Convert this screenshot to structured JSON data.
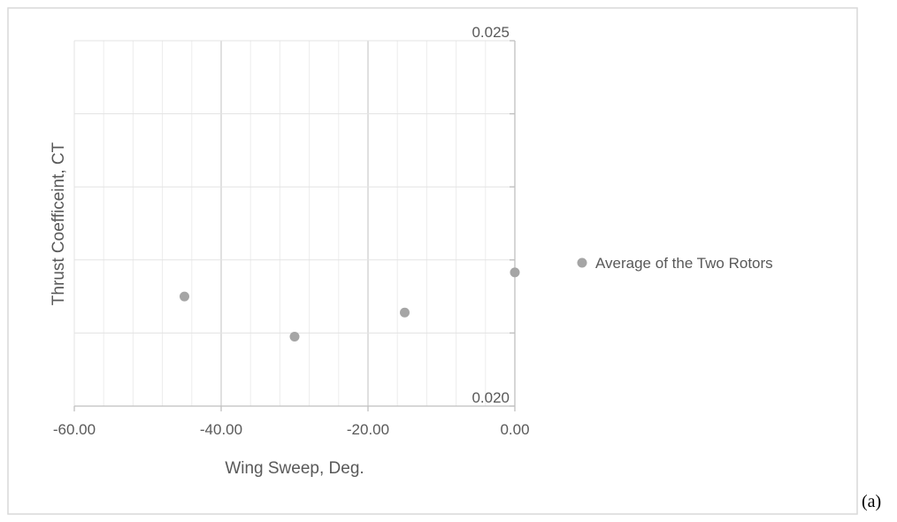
{
  "panel_label": "(a)",
  "chart_data": {
    "type": "scatter",
    "title": "",
    "xlabel": "Wing Sweep, Deg.",
    "ylabel": "Thrust Coefficeint, CT",
    "xlim": [
      -60,
      0
    ],
    "ylim": [
      0.02,
      0.025
    ],
    "x_ticks": [
      -60,
      -40,
      -20,
      0
    ],
    "x_tick_labels": [
      "-60.00",
      "-40.00",
      "-20.00",
      "0.00"
    ],
    "y_tick_labels_shown": [
      {
        "value": 0.025,
        "label": "0.025"
      },
      {
        "value": 0.02,
        "label": "0.020"
      }
    ],
    "major_grid_x_step": 20,
    "minor_grid_x_step": 4,
    "grid_y_step": 0.001,
    "grid": true,
    "legend_position": "right",
    "series": [
      {
        "name": "Average  of the Two Rotors",
        "color": "#a5a5a5",
        "x": [
          -45,
          -30,
          -15,
          0
        ],
        "y": [
          0.0215,
          0.02095,
          0.02128,
          0.02183
        ]
      }
    ]
  }
}
